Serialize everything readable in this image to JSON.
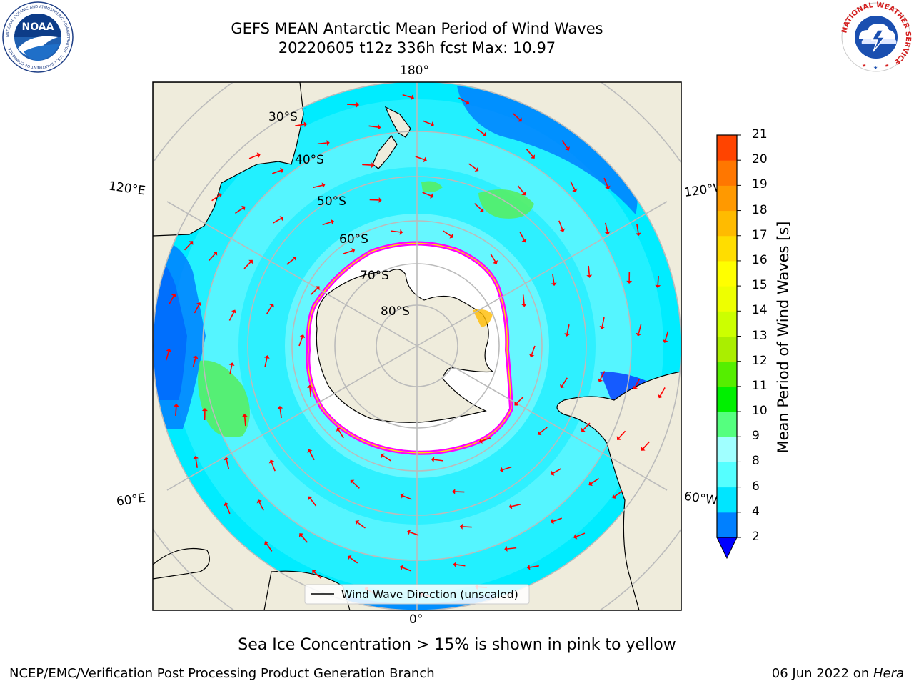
{
  "header": {
    "title_line1": "GEFS MEAN Antarctic Mean Period of Wind Waves",
    "title_line2": "20220605 t12z 336h fcst   Max: 10.97"
  },
  "logos": {
    "left": {
      "name": "noaa-logo",
      "text": "NOAA",
      "ring_text": "NATIONAL OCEANIC AND ATMOSPHERIC ADMINISTRATION · U.S. DEPARTMENT OF COMMERCE"
    },
    "right": {
      "name": "nws-logo",
      "ring_text": "NATIONAL WEATHER SERVICE"
    }
  },
  "map": {
    "projection": "south-polar-stereographic",
    "lon_labels": {
      "top": "180°",
      "bottom": "0°",
      "left_upper": "120°E",
      "left_lower": "60°E",
      "right_upper": "120°W",
      "right_lower": "60°W"
    },
    "lat_labels": [
      "30°S",
      "40°S",
      "50°S",
      "60°S",
      "70°S",
      "80°S"
    ],
    "legend_label": "Wind Wave Direction (unscaled)",
    "colors": {
      "land": "#efecdc",
      "ice": "#ffffff",
      "ice_edge": "#ff00ff",
      "arrow": "#ff0000",
      "grid": "#bbbbbb"
    }
  },
  "colorbar": {
    "label": "Mean Period of Wind Waves [s]",
    "ticks": [
      "2",
      "4",
      "6",
      "8",
      "9",
      "10",
      "11",
      "12",
      "13",
      "14",
      "15",
      "16",
      "17",
      "18",
      "19",
      "20",
      "21"
    ],
    "colors": [
      "#0080ff",
      "#00e5ff",
      "#55ffff",
      "#a0ffff",
      "#55ff7f",
      "#00f000",
      "#55ee00",
      "#aaee00",
      "#ccff00",
      "#eeff00",
      "#ffff00",
      "#ffdd00",
      "#ffbb00",
      "#ff9900",
      "#ff7700",
      "#ff4400",
      "#ff0000"
    ],
    "under_color": "#0000ff"
  },
  "footer": {
    "note": "Sea Ice Concentration > 15% is shown in pink to yellow",
    "left": "NCEP/EMC/Verification Post Processing Product Generation Branch",
    "date": "06 Jun 2022 on ",
    "host": "Hera"
  }
}
